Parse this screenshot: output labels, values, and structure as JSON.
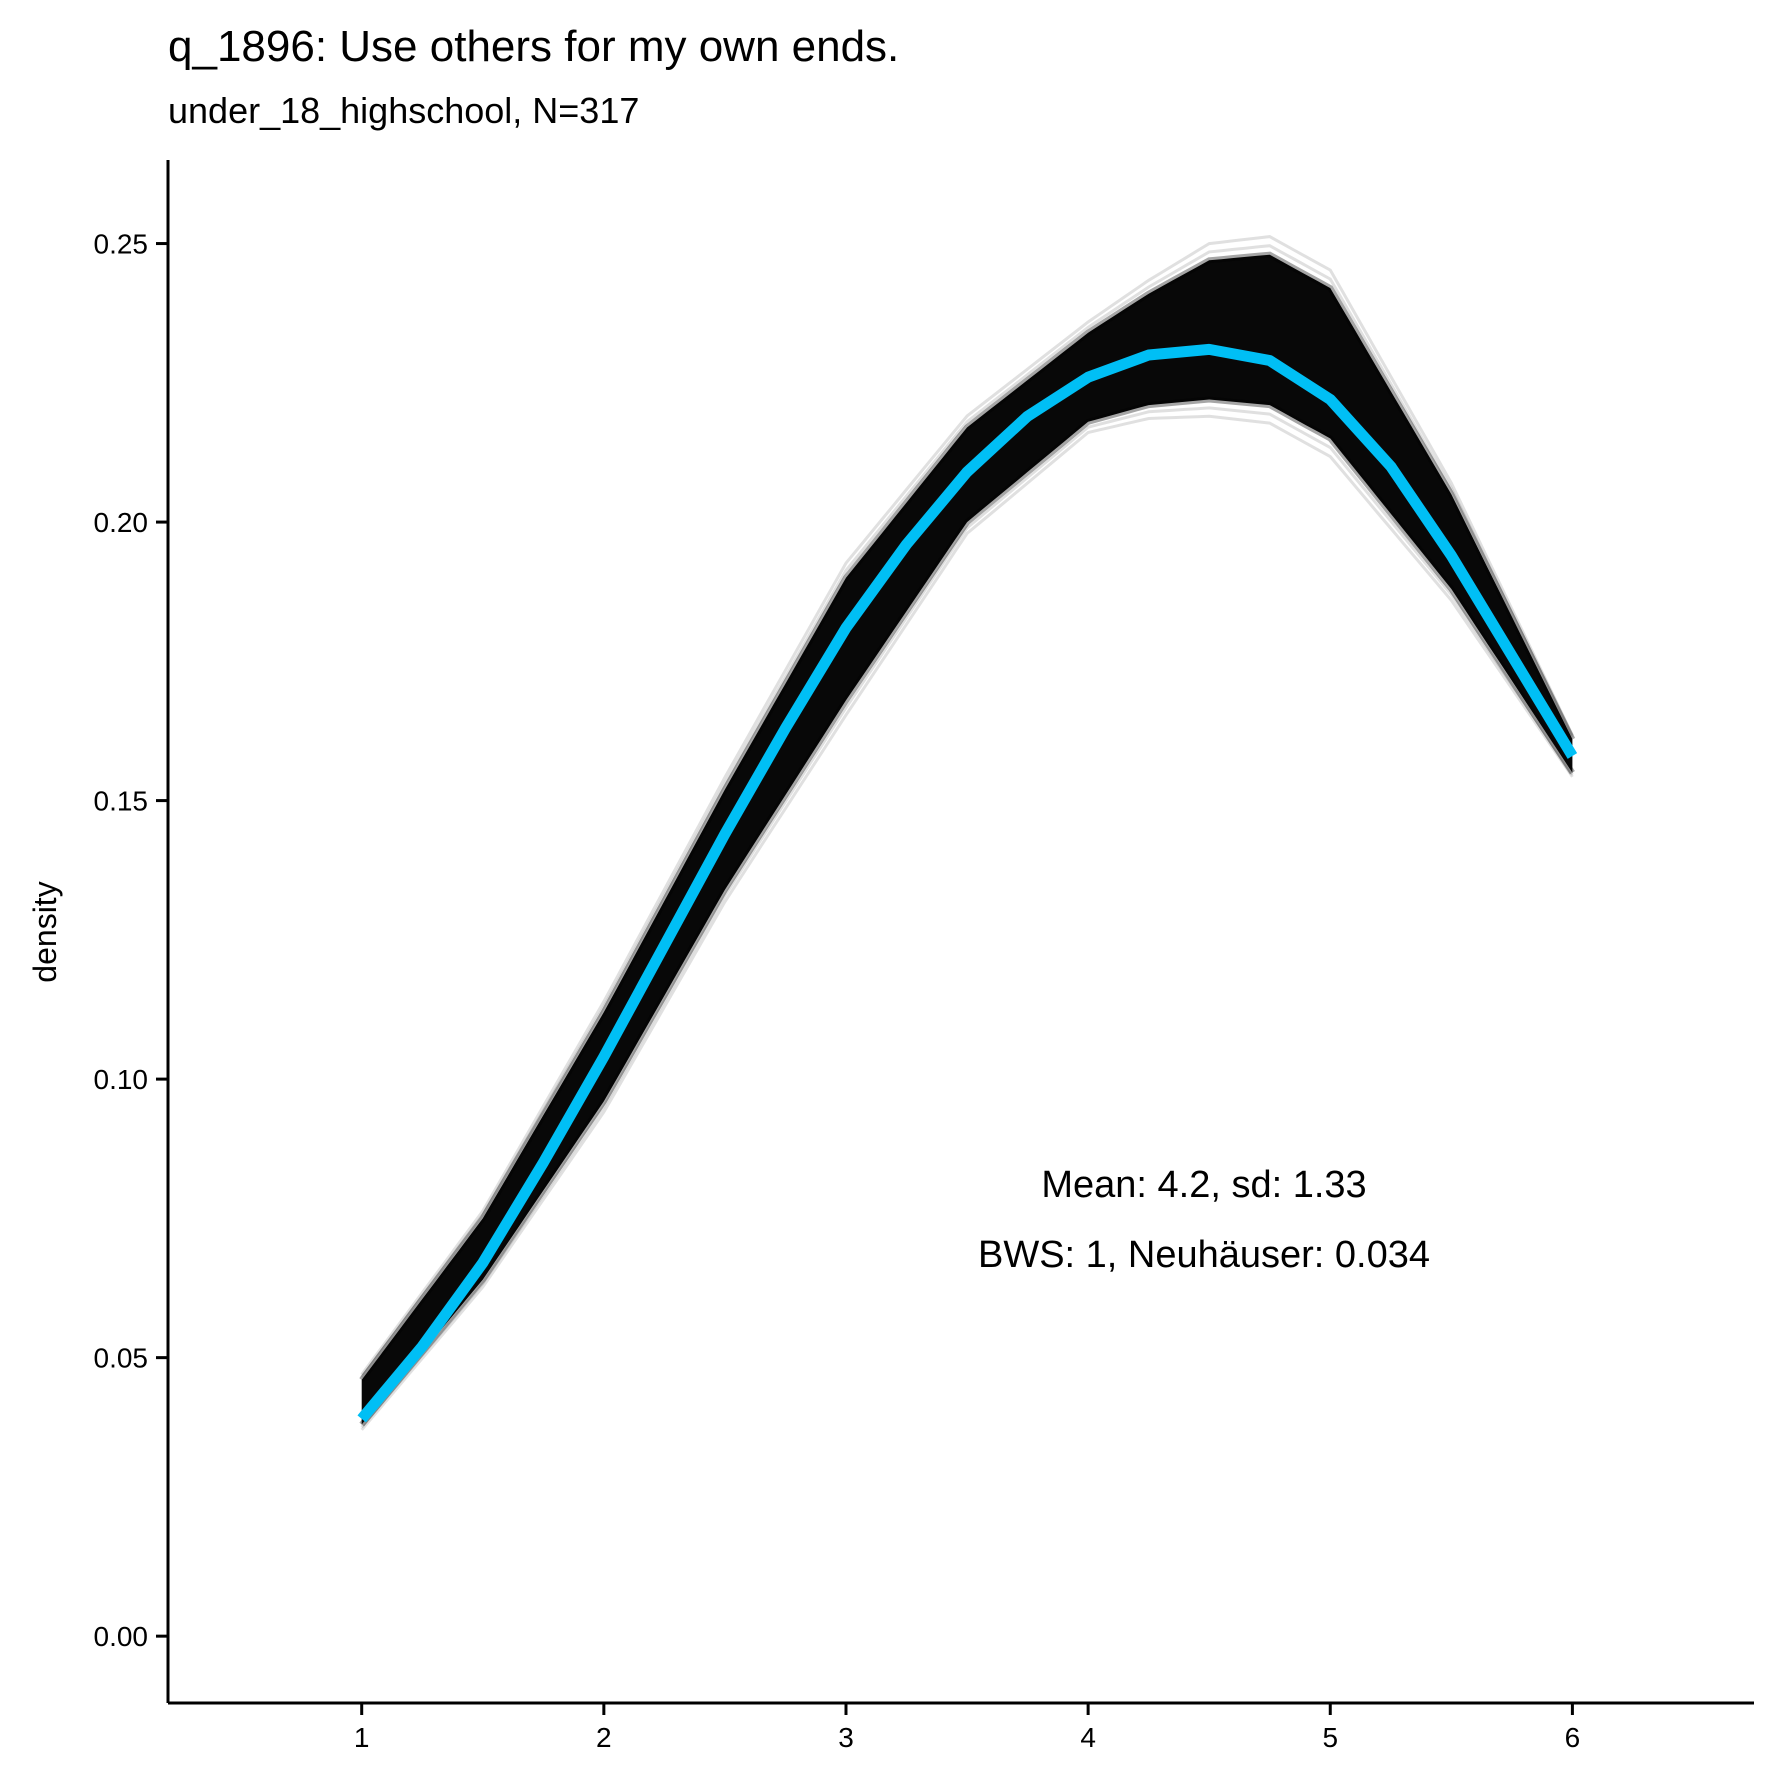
{
  "chart_data": {
    "type": "line",
    "title": "q_1896: Use others for my own ends.",
    "subtitle": "under_18_highschool, N=317",
    "xlabel": "",
    "ylabel": "density",
    "xlim": [
      0.2,
      6.75
    ],
    "ylim": [
      -0.012,
      0.265
    ],
    "x_ticks": [
      "1",
      "2",
      "3",
      "4",
      "5",
      "6"
    ],
    "y_ticks": [
      "0.00",
      "0.05",
      "0.10",
      "0.15",
      "0.20",
      "0.25"
    ],
    "grid": false,
    "legend": "none",
    "colors": {
      "mean_line": "#00BFF5",
      "bootstrap": "#000000"
    },
    "series": [
      {
        "role": "mean-density",
        "x": [
          1.0,
          1.25,
          1.5,
          1.75,
          2.0,
          2.25,
          2.5,
          2.75,
          3.0,
          3.25,
          3.5,
          3.75,
          4.0,
          4.25,
          4.5,
          4.75,
          5.0,
          5.25,
          5.5,
          5.75,
          6.0
        ],
        "y": [
          0.039,
          0.052,
          0.067,
          0.085,
          0.104,
          0.124,
          0.144,
          0.163,
          0.181,
          0.196,
          0.209,
          0.219,
          0.226,
          0.23,
          0.231,
          0.229,
          0.222,
          0.21,
          0.194,
          0.176,
          0.158
        ]
      }
    ],
    "band": {
      "role": "bootstrap-density-curves",
      "x": [
        1.0,
        1.5,
        2.0,
        2.5,
        3.0,
        3.5,
        4.0,
        4.25,
        4.5,
        4.75,
        5.0,
        5.5,
        6.0
      ],
      "lower": [
        0.038,
        0.064,
        0.096,
        0.134,
        0.168,
        0.2,
        0.218,
        0.221,
        0.222,
        0.221,
        0.215,
        0.188,
        0.155
      ],
      "upper": [
        0.046,
        0.075,
        0.112,
        0.152,
        0.19,
        0.217,
        0.234,
        0.241,
        0.247,
        0.248,
        0.242,
        0.205,
        0.161
      ]
    },
    "annotations": [
      "Mean: 4.2, sd: 1.33",
      "BWS: 1, Neuhäuser: 0.034"
    ]
  }
}
